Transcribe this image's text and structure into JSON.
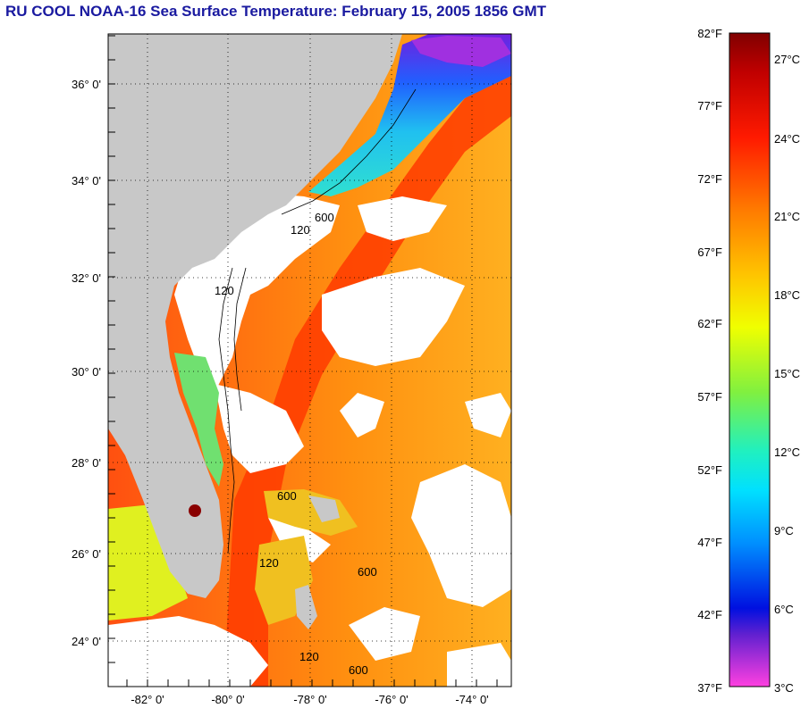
{
  "title": "RU COOL  NOAA-16  Sea Surface Temperature:  February 15, 2005 1856 GMT",
  "colors": {
    "land": "#c8c8c8",
    "cloud": "#ffffff",
    "title": "#1a1aa0",
    "gulf_stream": "#ff3300",
    "offshore": "#ff8a10"
  },
  "map": {
    "lat_labels": [
      "36° 0'",
      "34° 0'",
      "32° 0'",
      "30° 0'",
      "28° 0'",
      "26° 0'",
      "24° 0'"
    ],
    "lon_labels": [
      "-82° 0'",
      "-80° 0'",
      "-78° 0'",
      "-76° 0'",
      "-74° 0'"
    ],
    "contour_labels": [
      "120",
      "600",
      "120",
      "600",
      "120",
      "600",
      "120",
      "600"
    ]
  },
  "colorbar": {
    "fahrenheit_labels": [
      "82°F",
      "77°F",
      "72°F",
      "67°F",
      "62°F",
      "57°F",
      "52°F",
      "47°F",
      "42°F",
      "37°F"
    ],
    "celsius_labels": [
      "27°C",
      "24°C",
      "21°C",
      "18°C",
      "15°C",
      "12°C",
      "9°C",
      "6°C",
      "3°C"
    ]
  }
}
